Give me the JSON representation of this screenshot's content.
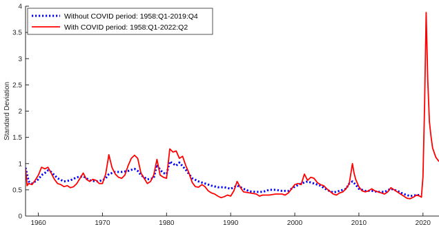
{
  "chart_data": {
    "type": "line",
    "title": "",
    "xlabel": "",
    "ylabel": "Standard Deviation",
    "xlim": [
      1958,
      2022.5
    ],
    "ylim": [
      0,
      4
    ],
    "x_ticks": [
      1960,
      1970,
      1980,
      1990,
      2000,
      2010,
      2020
    ],
    "y_ticks": [
      0,
      0.5,
      1,
      1.5,
      2,
      2.5,
      3,
      3.5,
      4
    ],
    "grid": false,
    "legend_position": "top-left",
    "series": [
      {
        "name": "Without COVID period: 1958:Q1-2019:Q4",
        "color": "#0000ff",
        "style": "dotted",
        "points": [
          [
            1958.0,
            0.92
          ],
          [
            1958.5,
            0.66
          ],
          [
            1959.0,
            0.62
          ],
          [
            1959.5,
            0.66
          ],
          [
            1960.0,
            0.7
          ],
          [
            1960.5,
            0.78
          ],
          [
            1961.0,
            0.82
          ],
          [
            1961.5,
            0.87
          ],
          [
            1962.0,
            0.84
          ],
          [
            1962.5,
            0.78
          ],
          [
            1963.0,
            0.72
          ],
          [
            1964.0,
            0.66
          ],
          [
            1965.0,
            0.68
          ],
          [
            1966.0,
            0.74
          ],
          [
            1967.0,
            0.76
          ],
          [
            1967.5,
            0.72
          ],
          [
            1968.0,
            0.68
          ],
          [
            1969.0,
            0.66
          ],
          [
            1970.0,
            0.68
          ],
          [
            1970.5,
            0.72
          ],
          [
            1971.0,
            0.8
          ],
          [
            1972.0,
            0.84
          ],
          [
            1973.0,
            0.84
          ],
          [
            1974.0,
            0.86
          ],
          [
            1975.0,
            0.9
          ],
          [
            1975.5,
            0.86
          ],
          [
            1976.0,
            0.78
          ],
          [
            1977.0,
            0.7
          ],
          [
            1978.0,
            0.72
          ],
          [
            1978.5,
            0.98
          ],
          [
            1979.0,
            0.88
          ],
          [
            1979.5,
            0.82
          ],
          [
            1980.0,
            0.8
          ],
          [
            1980.5,
            1.04
          ],
          [
            1981.0,
            1.0
          ],
          [
            1981.5,
            0.96
          ],
          [
            1982.0,
            1.02
          ],
          [
            1983.0,
            0.88
          ],
          [
            1984.0,
            0.72
          ],
          [
            1985.0,
            0.66
          ],
          [
            1986.0,
            0.62
          ],
          [
            1987.0,
            0.58
          ],
          [
            1988.0,
            0.55
          ],
          [
            1989.0,
            0.55
          ],
          [
            1990.0,
            0.52
          ],
          [
            1991.0,
            0.58
          ],
          [
            1992.0,
            0.52
          ],
          [
            1993.0,
            0.47
          ],
          [
            1994.0,
            0.46
          ],
          [
            1995.0,
            0.46
          ],
          [
            1996.0,
            0.5
          ],
          [
            1997.0,
            0.5
          ],
          [
            1998.0,
            0.48
          ],
          [
            1999.0,
            0.48
          ],
          [
            2000.0,
            0.56
          ],
          [
            2001.0,
            0.62
          ],
          [
            2002.0,
            0.66
          ],
          [
            2003.0,
            0.62
          ],
          [
            2004.0,
            0.58
          ],
          [
            2005.0,
            0.5
          ],
          [
            2006.0,
            0.45
          ],
          [
            2007.0,
            0.48
          ],
          [
            2008.0,
            0.52
          ],
          [
            2008.5,
            0.62
          ],
          [
            2009.0,
            0.66
          ],
          [
            2009.5,
            0.6
          ],
          [
            2010.0,
            0.52
          ],
          [
            2011.0,
            0.48
          ],
          [
            2012.0,
            0.48
          ],
          [
            2013.0,
            0.46
          ],
          [
            2014.0,
            0.46
          ],
          [
            2015.0,
            0.52
          ],
          [
            2016.0,
            0.48
          ],
          [
            2017.0,
            0.42
          ],
          [
            2018.0,
            0.38
          ],
          [
            2019.0,
            0.4
          ],
          [
            2019.75,
            0.4
          ]
        ]
      },
      {
        "name": "With COVID period: 1958:Q1-2022:Q2",
        "color": "#ff0000",
        "style": "solid",
        "points": [
          [
            1958.0,
            0.9
          ],
          [
            1958.25,
            0.58
          ],
          [
            1958.5,
            0.62
          ],
          [
            1959.0,
            0.6
          ],
          [
            1959.5,
            0.68
          ],
          [
            1960.0,
            0.78
          ],
          [
            1960.5,
            0.93
          ],
          [
            1961.0,
            0.9
          ],
          [
            1961.5,
            0.93
          ],
          [
            1962.0,
            0.82
          ],
          [
            1962.5,
            0.7
          ],
          [
            1963.0,
            0.62
          ],
          [
            1963.5,
            0.6
          ],
          [
            1964.0,
            0.56
          ],
          [
            1964.5,
            0.58
          ],
          [
            1965.0,
            0.54
          ],
          [
            1965.5,
            0.56
          ],
          [
            1966.0,
            0.62
          ],
          [
            1966.5,
            0.72
          ],
          [
            1967.0,
            0.82
          ],
          [
            1967.5,
            0.7
          ],
          [
            1968.0,
            0.66
          ],
          [
            1968.5,
            0.7
          ],
          [
            1969.0,
            0.68
          ],
          [
            1969.5,
            0.62
          ],
          [
            1970.0,
            0.62
          ],
          [
            1970.5,
            0.8
          ],
          [
            1971.0,
            1.17
          ],
          [
            1971.5,
            0.92
          ],
          [
            1972.0,
            0.8
          ],
          [
            1972.5,
            0.74
          ],
          [
            1973.0,
            0.72
          ],
          [
            1973.5,
            0.78
          ],
          [
            1974.0,
            0.96
          ],
          [
            1974.5,
            1.1
          ],
          [
            1975.0,
            1.16
          ],
          [
            1975.5,
            1.1
          ],
          [
            1976.0,
            0.82
          ],
          [
            1976.5,
            0.72
          ],
          [
            1977.0,
            0.62
          ],
          [
            1977.5,
            0.66
          ],
          [
            1978.0,
            0.78
          ],
          [
            1978.5,
            1.08
          ],
          [
            1979.0,
            0.78
          ],
          [
            1979.5,
            0.74
          ],
          [
            1980.0,
            0.72
          ],
          [
            1980.5,
            1.28
          ],
          [
            1981.0,
            1.22
          ],
          [
            1981.5,
            1.24
          ],
          [
            1982.0,
            1.1
          ],
          [
            1982.5,
            1.14
          ],
          [
            1983.0,
            0.96
          ],
          [
            1983.5,
            0.82
          ],
          [
            1984.0,
            0.64
          ],
          [
            1984.5,
            0.56
          ],
          [
            1985.0,
            0.55
          ],
          [
            1985.5,
            0.6
          ],
          [
            1986.0,
            0.56
          ],
          [
            1986.5,
            0.48
          ],
          [
            1987.0,
            0.44
          ],
          [
            1987.5,
            0.42
          ],
          [
            1988.0,
            0.38
          ],
          [
            1988.5,
            0.35
          ],
          [
            1989.0,
            0.37
          ],
          [
            1989.5,
            0.4
          ],
          [
            1990.0,
            0.38
          ],
          [
            1990.5,
            0.48
          ],
          [
            1991.0,
            0.66
          ],
          [
            1991.5,
            0.55
          ],
          [
            1992.0,
            0.46
          ],
          [
            1993.0,
            0.44
          ],
          [
            1994.0,
            0.42
          ],
          [
            1994.5,
            0.38
          ],
          [
            1995.0,
            0.4
          ],
          [
            1996.0,
            0.4
          ],
          [
            1997.0,
            0.42
          ],
          [
            1998.0,
            0.42
          ],
          [
            1998.5,
            0.4
          ],
          [
            1999.0,
            0.44
          ],
          [
            2000.0,
            0.6
          ],
          [
            2000.5,
            0.62
          ],
          [
            2001.0,
            0.6
          ],
          [
            2001.5,
            0.8
          ],
          [
            2002.0,
            0.68
          ],
          [
            2002.5,
            0.74
          ],
          [
            2003.0,
            0.72
          ],
          [
            2003.5,
            0.64
          ],
          [
            2004.0,
            0.6
          ],
          [
            2004.5,
            0.58
          ],
          [
            2005.0,
            0.52
          ],
          [
            2006.0,
            0.42
          ],
          [
            2006.5,
            0.4
          ],
          [
            2007.0,
            0.44
          ],
          [
            2007.5,
            0.46
          ],
          [
            2008.0,
            0.52
          ],
          [
            2008.5,
            0.62
          ],
          [
            2009.0,
            1.0
          ],
          [
            2009.25,
            0.82
          ],
          [
            2009.5,
            0.7
          ],
          [
            2010.0,
            0.56
          ],
          [
            2010.5,
            0.48
          ],
          [
            2011.0,
            0.46
          ],
          [
            2011.5,
            0.48
          ],
          [
            2012.0,
            0.52
          ],
          [
            2012.5,
            0.48
          ],
          [
            2013.0,
            0.46
          ],
          [
            2013.5,
            0.44
          ],
          [
            2014.0,
            0.42
          ],
          [
            2014.5,
            0.46
          ],
          [
            2015.0,
            0.54
          ],
          [
            2015.5,
            0.5
          ],
          [
            2016.0,
            0.46
          ],
          [
            2016.5,
            0.42
          ],
          [
            2017.0,
            0.38
          ],
          [
            2017.5,
            0.34
          ],
          [
            2018.0,
            0.33
          ],
          [
            2018.5,
            0.36
          ],
          [
            2019.0,
            0.4
          ],
          [
            2019.5,
            0.38
          ],
          [
            2019.75,
            0.36
          ],
          [
            2020.0,
            0.75
          ],
          [
            2020.25,
            2.1
          ],
          [
            2020.5,
            3.88
          ],
          [
            2020.75,
            2.6
          ],
          [
            2021.0,
            1.8
          ],
          [
            2021.25,
            1.52
          ],
          [
            2021.5,
            1.3
          ],
          [
            2022.0,
            1.12
          ],
          [
            2022.5,
            1.04
          ]
        ]
      }
    ]
  }
}
